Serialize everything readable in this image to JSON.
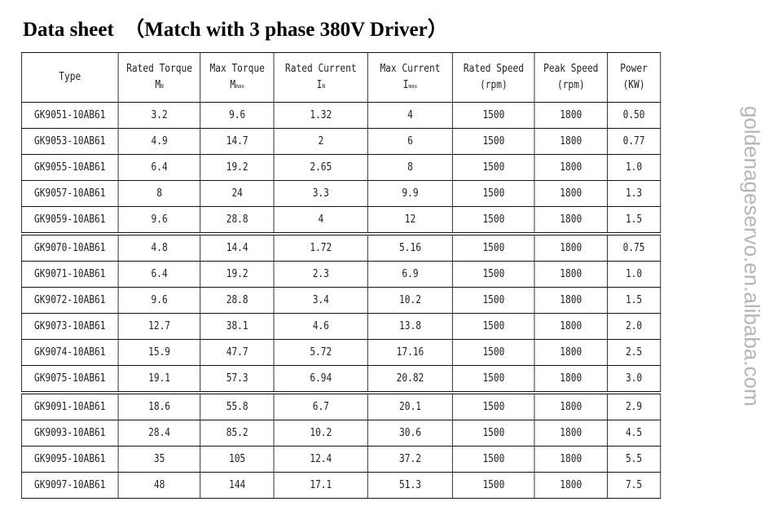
{
  "title": "Data sheet  （Match with 3 phase 380V Driver）",
  "watermark": "goldenageservo.en.alibaba.com",
  "headers": [
    {
      "l1": "Type",
      "l2": "",
      "sub": ""
    },
    {
      "l1": "Rated Torque",
      "l2": "M",
      "sub": "N"
    },
    {
      "l1": "Max Torque",
      "l2": "M",
      "sub": "max"
    },
    {
      "l1": "Rated Current",
      "l2": "I",
      "sub": "N"
    },
    {
      "l1": "Max  Current",
      "l2": "I",
      "sub": "max"
    },
    {
      "l1": "Rated Speed",
      "l2": "(rpm)",
      "sub": ""
    },
    {
      "l1": "Peak Speed",
      "l2": "(rpm)",
      "sub": ""
    },
    {
      "l1": "Power",
      "l2": "(KW)",
      "sub": ""
    }
  ],
  "rows": [
    [
      "GK9051-10AB61",
      "3.2",
      "9.6",
      "1.32",
      "4",
      "1500",
      "1800",
      "0.50"
    ],
    [
      "GK9053-10AB61",
      "4.9",
      "14.7",
      "2",
      "6",
      "1500",
      "1800",
      "0.77"
    ],
    [
      "GK9055-10AB61",
      "6.4",
      "19.2",
      "2.65",
      "8",
      "1500",
      "1800",
      "1.0"
    ],
    [
      "GK9057-10AB61",
      "8",
      "24",
      "3.3",
      "9.9",
      "1500",
      "1800",
      "1.3"
    ],
    [
      "GK9059-10AB61",
      "9.6",
      "28.8",
      "4",
      "12",
      "1500",
      "1800",
      "1.5"
    ],
    [
      "GK9070-10AB61",
      "4.8",
      "14.4",
      "1.72",
      "5.16",
      "1500",
      "1800",
      "0.75"
    ],
    [
      "GK9071-10AB61",
      "6.4",
      "19.2",
      "2.3",
      "6.9",
      "1500",
      "1800",
      "1.0"
    ],
    [
      "GK9072-10AB61",
      "9.6",
      "28.8",
      "3.4",
      "10.2",
      "1500",
      "1800",
      "1.5"
    ],
    [
      "GK9073-10AB61",
      "12.7",
      "38.1",
      "4.6",
      "13.8",
      "1500",
      "1800",
      "2.0"
    ],
    [
      "GK9074-10AB61",
      "15.9",
      "47.7",
      "5.72",
      "17.16",
      "1500",
      "1800",
      "2.5"
    ],
    [
      "GK9075-10AB61",
      "19.1",
      "57.3",
      "6.94",
      "20.82",
      "1500",
      "1800",
      "3.0"
    ],
    [
      "GK9091-10AB61",
      "18.6",
      "55.8",
      "6.7",
      "20.1",
      "1500",
      "1800",
      "2.9"
    ],
    [
      "GK9093-10AB61",
      "28.4",
      "85.2",
      "10.2",
      "30.6",
      "1500",
      "1800",
      "4.5"
    ],
    [
      "GK9095-10AB61",
      "35",
      "105",
      "12.4",
      "37.2",
      "1500",
      "1800",
      "5.5"
    ],
    [
      "GK9097-10AB61",
      "48",
      "144",
      "17.1",
      "51.3",
      "1500",
      "1800",
      "7.5"
    ]
  ]
}
